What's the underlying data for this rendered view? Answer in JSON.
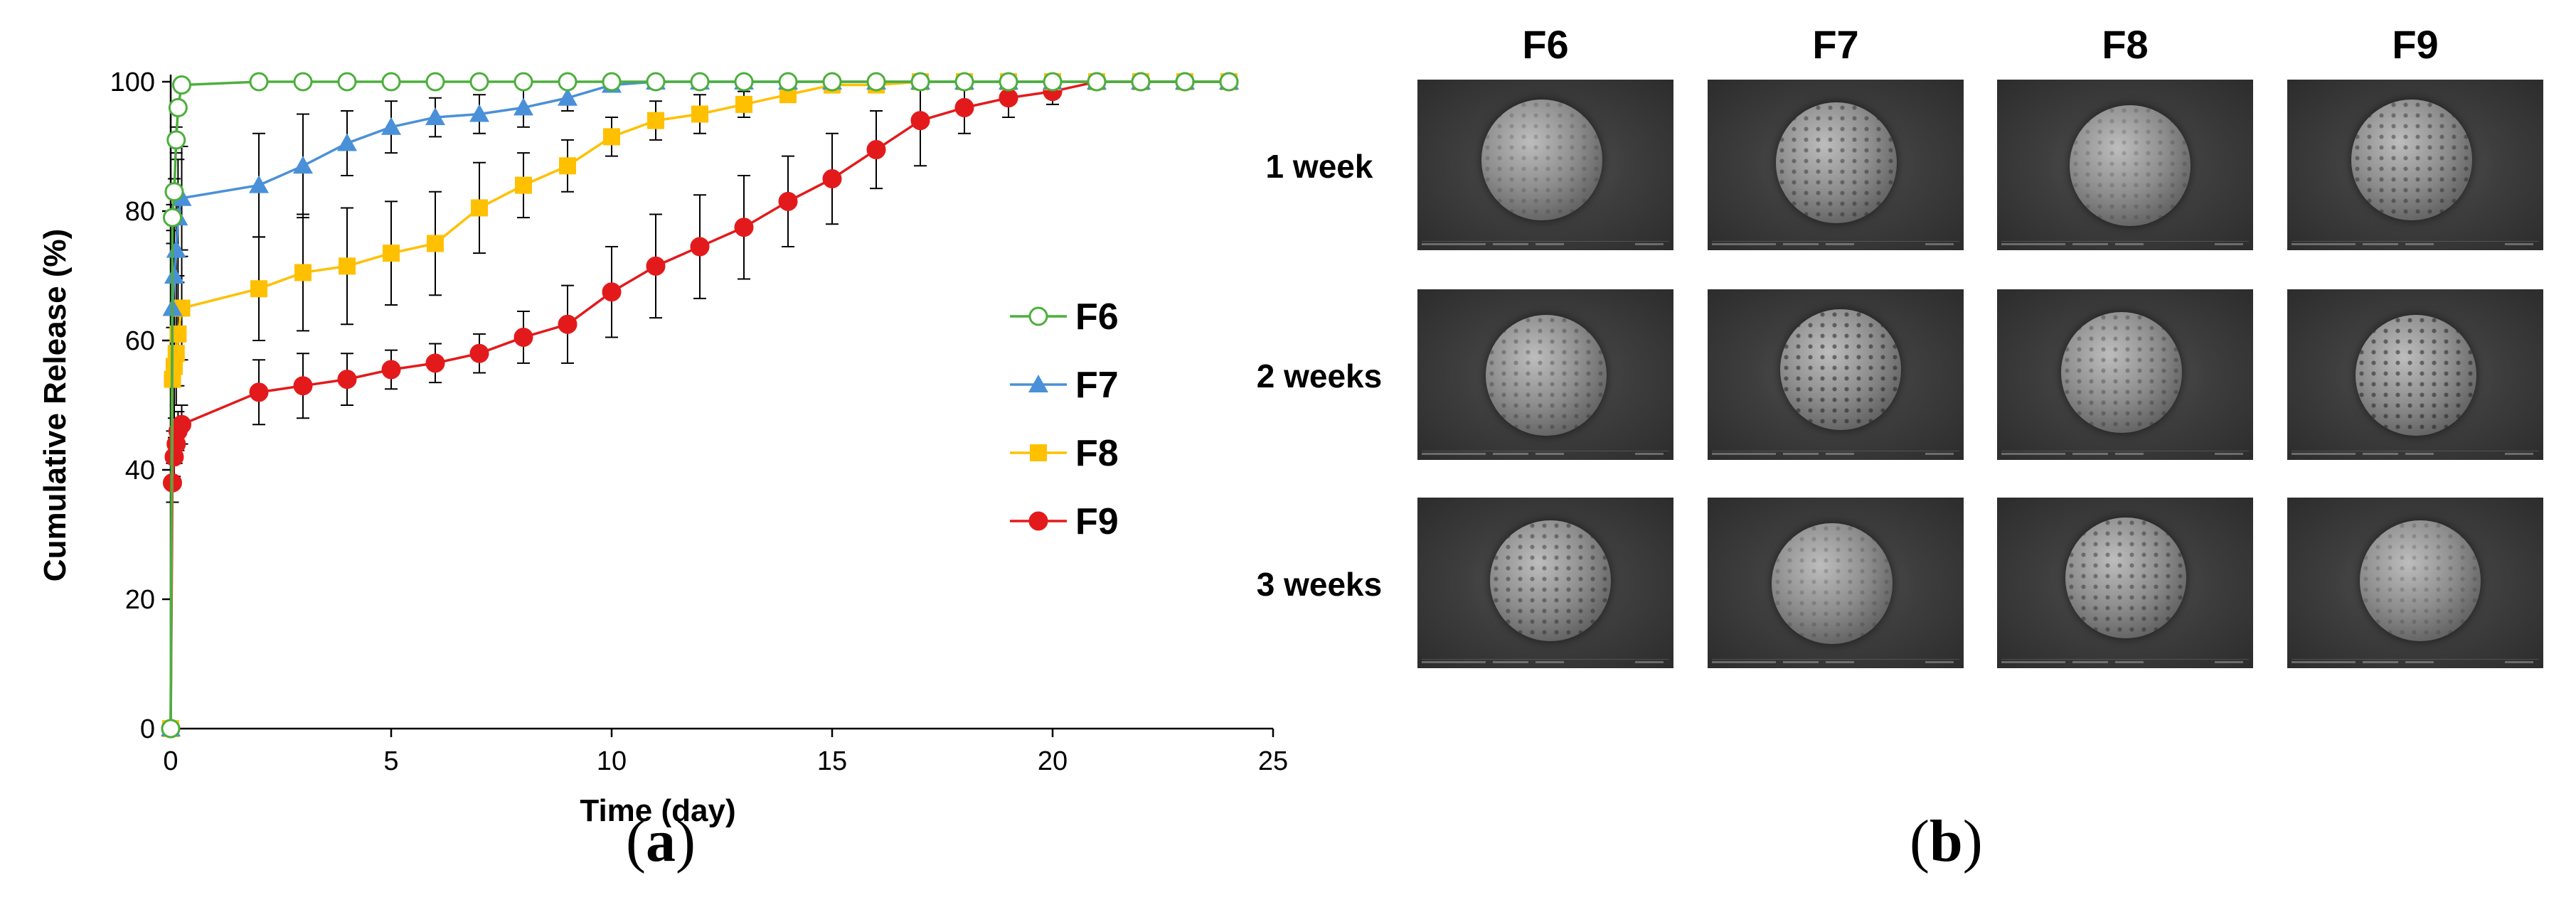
{
  "panel_a": {
    "label_letter": "a",
    "chart_data": {
      "type": "line",
      "xlabel": "Time (day)",
      "ylabel": "Cumulative Release (%)",
      "xlim": [
        0,
        25
      ],
      "ylim": [
        0,
        100
      ],
      "xticks": [
        "0",
        "5",
        "10",
        "15",
        "20",
        "25"
      ],
      "yticks": [
        "0",
        "20",
        "40",
        "60",
        "80",
        "100"
      ],
      "legend_position": "right-center",
      "series": [
        {
          "name": "F6",
          "color": "#4caf3c",
          "marker": "open-circle",
          "x": [
            0,
            0.04,
            0.08,
            0.125,
            0.167,
            0.25,
            2,
            3,
            4,
            5,
            6,
            7,
            8,
            9,
            10,
            11,
            12,
            13,
            14,
            15,
            16,
            17,
            18,
            19,
            20,
            21,
            22,
            23,
            24
          ],
          "y": [
            0,
            79,
            83,
            91,
            96,
            99.5,
            100,
            100,
            100,
            100,
            100,
            100,
            100,
            100,
            100,
            100,
            100,
            100,
            100,
            100,
            100,
            100,
            100,
            100,
            100,
            100,
            100,
            100,
            100
          ],
          "err": [
            0,
            2,
            2,
            2,
            1,
            0.5,
            0,
            0,
            0,
            0,
            0,
            0,
            0,
            0,
            0,
            0,
            0,
            0,
            0,
            0,
            0,
            0,
            0,
            0,
            0,
            0,
            0,
            0,
            0
          ]
        },
        {
          "name": "F7",
          "color": "#4a90d9",
          "marker": "filled-triangle",
          "x": [
            0,
            0.04,
            0.08,
            0.125,
            0.167,
            0.25,
            2,
            3,
            4,
            5,
            6,
            7,
            8,
            9,
            10,
            11,
            12,
            13,
            14,
            15,
            16,
            17,
            18,
            19,
            20,
            21,
            22,
            23,
            24
          ],
          "y": [
            0,
            65,
            70,
            74,
            79,
            82,
            84,
            87,
            90.5,
            93,
            94.5,
            95,
            96,
            97.5,
            99.5,
            100,
            100,
            100,
            100,
            100,
            100,
            100,
            100,
            100,
            100,
            100,
            100,
            100,
            100
          ],
          "err": [
            0,
            10,
            10,
            9,
            9,
            8,
            8,
            8,
            5,
            4,
            3,
            3,
            3,
            2,
            1,
            0,
            0,
            0,
            0,
            0,
            0,
            0,
            0,
            0,
            0,
            0,
            0,
            0,
            0
          ]
        },
        {
          "name": "F8",
          "color": "#ffc000",
          "marker": "filled-square",
          "x": [
            0,
            0.04,
            0.08,
            0.125,
            0.167,
            0.25,
            2,
            3,
            4,
            5,
            6,
            7,
            8,
            9,
            10,
            11,
            12,
            13,
            14,
            15,
            16,
            17,
            18,
            19,
            20,
            21,
            22,
            23,
            24
          ],
          "y": [
            0,
            54,
            56,
            58,
            61,
            65,
            68,
            70.5,
            71.5,
            73.5,
            75,
            80.5,
            84,
            87,
            91.5,
            94,
            95,
            96.5,
            98,
            99.5,
            99.5,
            100,
            100,
            100,
            100,
            100,
            100,
            100,
            100
          ],
          "err": [
            0,
            8,
            8,
            8,
            8,
            8,
            8,
            9,
            9,
            8,
            8,
            7,
            5,
            4,
            3,
            3,
            3,
            2,
            1,
            1,
            0.5,
            0,
            0,
            0,
            0,
            0,
            0,
            0,
            0
          ]
        },
        {
          "name": "F9",
          "color": "#e31a1c",
          "marker": "filled-circle",
          "x": [
            0,
            0.04,
            0.08,
            0.125,
            0.167,
            0.25,
            2,
            3,
            4,
            5,
            6,
            7,
            8,
            9,
            10,
            11,
            12,
            13,
            14,
            15,
            16,
            17,
            18,
            19,
            20,
            21,
            22,
            23,
            24
          ],
          "y": [
            0,
            38,
            42,
            44,
            46,
            47,
            52,
            53,
            54,
            55.5,
            56.5,
            58,
            60.5,
            62.5,
            67.5,
            71.5,
            74.5,
            77.5,
            81.5,
            85,
            89.5,
            94,
            96,
            97.5,
            98.5,
            100,
            100,
            100,
            100
          ],
          "err": [
            0,
            3,
            3,
            3,
            3,
            3,
            5,
            5,
            4,
            3,
            3,
            3,
            4,
            6,
            7,
            8,
            8,
            8,
            7,
            7,
            6,
            7,
            4,
            3,
            2,
            0,
            0,
            0,
            0
          ]
        }
      ]
    }
  },
  "panel_b": {
    "label_letter": "b",
    "columns": [
      "F6",
      "F7",
      "F8",
      "F9"
    ],
    "rows": [
      "1 week",
      "2 weeks",
      "3 weeks"
    ],
    "tile_info_text": ""
  }
}
